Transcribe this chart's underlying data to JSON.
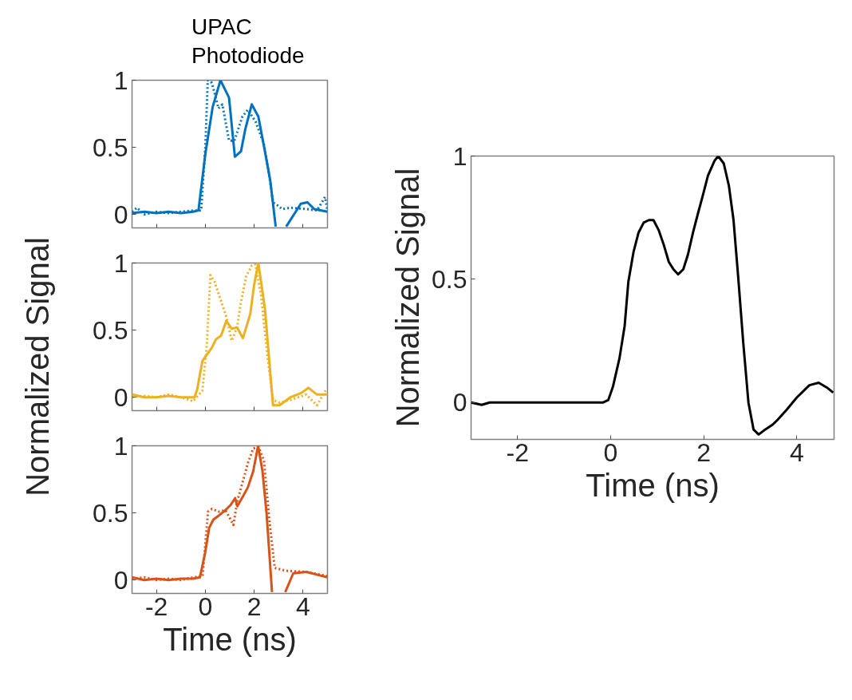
{
  "chart_data": [
    {
      "type": "line",
      "xlim": [
        -3,
        5
      ],
      "xticks": [
        -2,
        0,
        2,
        4
      ],
      "ylim": [
        -0.1,
        1
      ],
      "yticks": [
        0,
        0.5,
        1
      ],
      "tick_labels": "y",
      "legend": "top",
      "series": [
        {
          "name": "UPAC",
          "color": "#0072bd",
          "line_style": "solid",
          "x": [
            -3,
            -2.5,
            -2,
            -1.5,
            -1,
            -0.5,
            -0.28,
            0,
            0.3,
            0.62,
            0.97,
            1.21,
            1.46,
            1.63,
            1.9,
            2.17,
            2.44,
            2.66,
            2.88,
            3.1,
            3.31,
            3.91,
            4.18,
            4.46,
            5
          ],
          "values": [
            0.01,
            0.02,
            0.01,
            0.02,
            0.01,
            0.02,
            0.03,
            0.45,
            0.8,
            1.0,
            0.87,
            0.43,
            0.47,
            0.63,
            0.82,
            0.73,
            0.47,
            0.25,
            -0.09,
            null,
            -0.09,
            0.08,
            0.09,
            0.04,
            0.02
          ]
        },
        {
          "name": "Photodiode",
          "color": "#0072bd",
          "line_style": "dotted",
          "x": [
            -3,
            -2.8,
            -2.5,
            -2,
            -1.5,
            -1,
            -0.5,
            -0.17,
            0.0,
            0.1,
            0.27,
            0.54,
            0.7,
            0.97,
            1.19,
            1.52,
            1.74,
            2.06,
            2.39,
            2.6,
            2.77,
            2.94,
            3.15,
            3.48,
            4.13,
            4.57,
            4.9,
            5
          ],
          "values": [
            0.02,
            0.05,
            0.0,
            0.02,
            0.01,
            0.02,
            0.03,
            0.03,
            0.5,
            1.0,
            0.98,
            0.79,
            0.82,
            0.55,
            0.55,
            0.73,
            0.78,
            0.69,
            0.53,
            0.31,
            0.09,
            0.07,
            0.04,
            0.05,
            0.04,
            0.03,
            0.13,
            0.03
          ]
        }
      ]
    },
    {
      "type": "line",
      "xlim": [
        -3,
        5
      ],
      "xticks": [
        -2,
        0,
        2,
        4
      ],
      "ylim": [
        -0.1,
        1
      ],
      "yticks": [
        0,
        0.5,
        1
      ],
      "tick_labels": "y",
      "ylabel": "Normalized Signal",
      "series": [
        {
          "color": "#edb120",
          "line_style": "solid",
          "x": [
            -3,
            -2.5,
            -2,
            -1.5,
            -1,
            -0.44,
            -0.33,
            -0.12,
            0.27,
            0.43,
            0.65,
            0.86,
            1.08,
            1.3,
            1.54,
            1.84,
            2.0,
            2.17,
            2.44,
            2.77,
            3.04,
            3.48,
            3.91,
            4.22,
            4.57,
            5
          ],
          "values": [
            0.02,
            0.0,
            0.0,
            0.01,
            0.0,
            0.0,
            0.06,
            0.27,
            0.37,
            0.43,
            0.46,
            0.57,
            0.51,
            0.52,
            0.44,
            0.62,
            0.84,
            1.0,
            0.66,
            -0.06,
            -0.06,
            0.0,
            0.03,
            0.07,
            0.02,
            0.02
          ]
        },
        {
          "color": "#edb120",
          "line_style": "dotted",
          "x": [
            -3,
            -2.5,
            -2,
            -1.5,
            -1,
            -0.5,
            -0.12,
            0.05,
            0.21,
            0.38,
            0.6,
            0.86,
            1.08,
            1.3,
            1.45,
            1.67,
            1.9,
            2.05,
            2.28,
            2.55,
            2.77,
            3.04,
            3.48,
            4.13,
            4.57,
            4.95
          ],
          "values": [
            0.0,
            0.01,
            0.0,
            0.02,
            0.0,
            -0.03,
            0.05,
            0.36,
            0.91,
            0.86,
            0.74,
            0.6,
            0.42,
            0.52,
            0.7,
            0.9,
            0.98,
            0.99,
            0.76,
            0.3,
            -0.02,
            -0.04,
            -0.02,
            0.02,
            -0.06,
            0.06
          ]
        }
      ]
    },
    {
      "type": "line",
      "xlim": [
        -3,
        5
      ],
      "xticks": [
        -2,
        0,
        2,
        4
      ],
      "ylim": [
        -0.1,
        1
      ],
      "yticks": [
        0,
        0.5,
        1
      ],
      "xlabel": "Time (ns)",
      "series": [
        {
          "color": "#d95319",
          "line_style": "solid",
          "x": [
            -3,
            -2.5,
            -2,
            -1.5,
            -1,
            -0.5,
            -0.22,
            0,
            0.16,
            0.33,
            0.55,
            0.82,
            1.04,
            1.22,
            1.31,
            1.53,
            1.74,
            1.96,
            2.16,
            2.34,
            2.51,
            2.73,
            3.0,
            3.27,
            3.6,
            4.14,
            5
          ],
          "values": [
            0.02,
            0.0,
            0.01,
            0.0,
            0.01,
            0.01,
            0.02,
            0.21,
            0.39,
            0.45,
            0.48,
            0.52,
            0.56,
            0.61,
            0.55,
            0.62,
            0.69,
            0.81,
            1.0,
            0.81,
            0.49,
            -0.09,
            null,
            -0.09,
            0.05,
            0.06,
            0.02
          ]
        },
        {
          "color": "#d95319",
          "line_style": "dotted",
          "x": [
            -3,
            -2.5,
            -2,
            -1.5,
            -1,
            -0.5,
            -0.11,
            0.11,
            0.27,
            0.55,
            0.82,
            0.98,
            1.15,
            1.31,
            1.53,
            1.74,
            1.96,
            2.18,
            2.4,
            2.62,
            2.84,
            3.27,
            4.14,
            5
          ],
          "values": [
            0.01,
            0.02,
            0.0,
            0.01,
            0.0,
            0.02,
            0.03,
            0.51,
            0.53,
            0.51,
            0.52,
            0.47,
            0.41,
            0.59,
            0.73,
            0.87,
            0.98,
            0.99,
            0.89,
            0.45,
            0.09,
            0.07,
            0.06,
            0.03
          ]
        }
      ]
    },
    {
      "type": "line",
      "xlim": [
        -3,
        4.8
      ],
      "xticks": [
        -2,
        0,
        2,
        4
      ],
      "ylim": [
        -0.15,
        1
      ],
      "yticks": [
        0,
        0.5,
        1
      ],
      "xlabel": "Time (ns)",
      "ylabel": "Normalized Signal",
      "series": [
        {
          "color": "#000000",
          "line_style": "solid",
          "x": [
            -3,
            -2.77,
            -2.6,
            -2,
            -1.5,
            -1,
            -0.5,
            -0.16,
            -0.05,
            0.05,
            0.19,
            0.3,
            0.38,
            0.49,
            0.6,
            0.71,
            0.82,
            0.92,
            1.03,
            1.14,
            1.25,
            1.35,
            1.45,
            1.56,
            1.66,
            1.77,
            1.88,
            1.98,
            2.09,
            2.23,
            2.31,
            2.43,
            2.54,
            2.64,
            2.74,
            2.85,
            2.96,
            3.07,
            3.18,
            3.32,
            3.48,
            3.59,
            3.78,
            4.0,
            4.27,
            4.47,
            4.65,
            4.78
          ],
          "values": [
            0.0,
            -0.01,
            0.0,
            0.0,
            0.0,
            0.0,
            0.0,
            0.0,
            0.01,
            0.065,
            0.18,
            0.31,
            0.49,
            0.61,
            0.69,
            0.73,
            0.74,
            0.74,
            0.7,
            0.64,
            0.57,
            0.54,
            0.52,
            0.54,
            0.6,
            0.69,
            0.77,
            0.84,
            0.92,
            0.98,
            1.0,
            0.97,
            0.88,
            0.74,
            0.51,
            0.24,
            0.0,
            -0.11,
            -0.13,
            -0.11,
            -0.09,
            -0.07,
            -0.03,
            0.02,
            0.07,
            0.08,
            0.06,
            0.04
          ]
        }
      ]
    }
  ]
}
